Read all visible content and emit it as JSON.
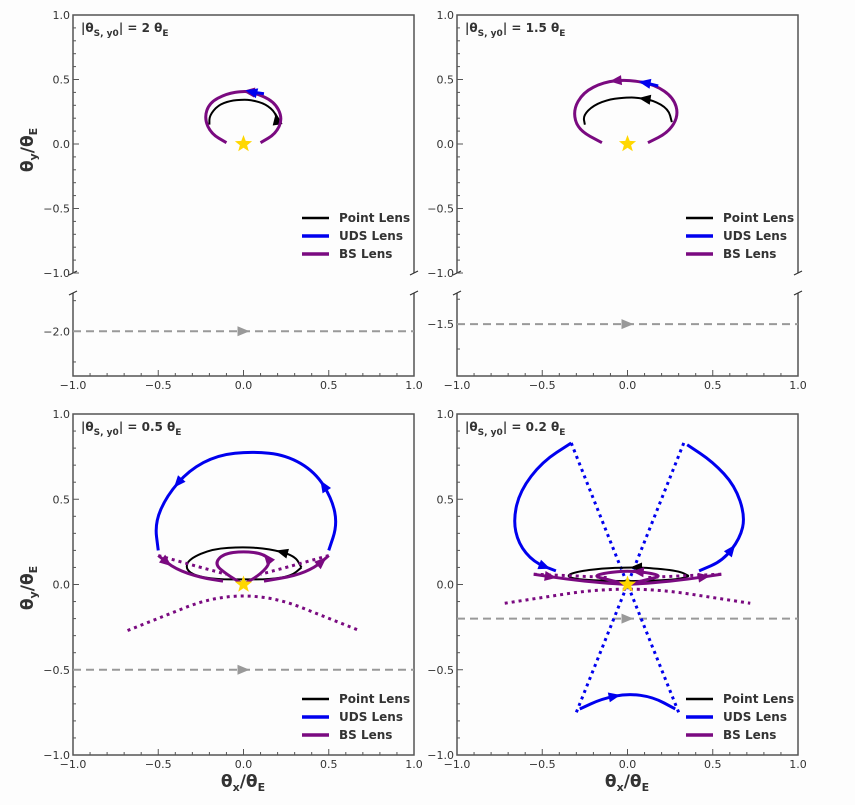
{
  "figure": {
    "xlabel_main": "θ",
    "xlabel_sub": "x",
    "xlabel_den": "/θ",
    "xlabel_den_sub": "E",
    "ylabel_main": "θ",
    "ylabel_sub": "y",
    "ylabel_den": "/θ",
    "ylabel_den_sub": "E"
  },
  "legend": [
    {
      "label": "Point Lens",
      "color": "#000000"
    },
    {
      "label": "UDS Lens",
      "color": "#0000ee"
    },
    {
      "label": "BS Lens",
      "color": "#7a0a80"
    }
  ],
  "colors": {
    "point": "#000000",
    "uds": "#0000ee",
    "bs": "#7a0a80",
    "source": "#999999",
    "star": "#ffd700",
    "axis": "#555555"
  },
  "chart_data": [
    {
      "type": "line",
      "panel": "top-left",
      "annotation": {
        "pre": "|θ",
        "sub": "S, y0",
        "post": "| = 2 θ",
        "post_sub": "E"
      },
      "xlim": [
        -1.0,
        1.0
      ],
      "ylim": [
        -1.0,
        1.0
      ],
      "broken_axis_lower": {
        "ylim": [
          -2.35,
          -1.7
        ],
        "ticks": [
          -2.0
        ],
        "tick_labels": [
          "−2.0"
        ]
      },
      "xticks": [
        -1.0,
        -0.5,
        0.0,
        0.5,
        1.0
      ],
      "xtick_labels": [
        "−1.0",
        "−0.5",
        "0.0",
        "0.5",
        "1.0"
      ],
      "yticks": [
        -1.0,
        -0.5,
        0.0,
        0.5,
        1.0
      ],
      "ytick_labels": [
        "−1.0",
        "−0.5",
        "0.0",
        "0.5",
        "1.0"
      ],
      "legend_position": "lower-right",
      "source_track_y": -2.0,
      "series": [
        {
          "name": "Point Lens",
          "style": "solid",
          "points": [
            [
              0.2,
              0.15
            ],
            [
              0.19,
              0.24
            ],
            [
              0.13,
              0.31
            ],
            [
              0.05,
              0.34
            ],
            [
              0.0,
              0.345
            ],
            [
              -0.08,
              0.335
            ],
            [
              -0.15,
              0.3
            ],
            [
              -0.2,
              0.22
            ],
            [
              -0.2,
              0.15
            ]
          ],
          "arrows": [
            0.1
          ]
        },
        {
          "name": "BS Lens",
          "style": "solid",
          "points": [
            [
              0.1,
              0.01
            ],
            [
              0.19,
              0.08
            ],
            [
              0.23,
              0.2
            ],
            [
              0.18,
              0.33
            ],
            [
              0.06,
              0.4
            ],
            [
              0.0,
              0.41
            ],
            [
              -0.1,
              0.39
            ],
            [
              -0.2,
              0.32
            ],
            [
              -0.23,
              0.2
            ],
            [
              -0.19,
              0.08
            ],
            [
              -0.1,
              0.01
            ]
          ],
          "arrows": [
            0.4
          ]
        },
        {
          "name": "UDS Lens",
          "style": "solid",
          "points": [
            [
              0.12,
              0.39
            ],
            [
              0.06,
              0.4
            ],
            [
              0.03,
              0.41
            ]
          ],
          "arrows": [
            0.5
          ]
        }
      ],
      "source_star": [
        0.0,
        0.0
      ]
    },
    {
      "type": "line",
      "panel": "top-right",
      "annotation": {
        "pre": "|θ",
        "sub": "S, y0",
        "post": "| = 1.5 θ",
        "post_sub": "E"
      },
      "xlim": [
        -1.0,
        1.0
      ],
      "ylim": [
        -1.0,
        1.0
      ],
      "broken_axis_lower": {
        "ylim": [
          -1.75,
          -1.35
        ],
        "ticks": [
          -1.5
        ],
        "tick_labels": [
          "−1.5"
        ]
      },
      "xticks": [
        -1.0,
        -0.5,
        0.0,
        0.5,
        1.0
      ],
      "xtick_labels": [
        "−1.0",
        "−0.5",
        "0.0",
        "0.5",
        "1.0"
      ],
      "yticks": [
        -1.0,
        -0.5,
        0.0,
        0.5,
        1.0
      ],
      "ytick_labels": [
        "−1.0",
        "−0.5",
        "0.0",
        "0.5",
        "1.0"
      ],
      "legend_position": "lower-right",
      "source_track_y": -1.5,
      "series": [
        {
          "name": "Point Lens",
          "style": "solid",
          "points": [
            [
              0.26,
              0.17
            ],
            [
              0.24,
              0.27
            ],
            [
              0.15,
              0.34
            ],
            [
              0.05,
              0.36
            ],
            [
              0.0,
              0.36
            ],
            [
              -0.1,
              0.35
            ],
            [
              -0.2,
              0.3
            ],
            [
              -0.26,
              0.22
            ],
            [
              -0.25,
              0.15
            ]
          ],
          "arrows": [
            0.3
          ]
        },
        {
          "name": "BS Lens",
          "style": "solid",
          "points": [
            [
              0.12,
              0.01
            ],
            [
              0.24,
              0.09
            ],
            [
              0.3,
              0.22
            ],
            [
              0.27,
              0.36
            ],
            [
              0.16,
              0.46
            ],
            [
              0.0,
              0.5
            ],
            [
              -0.14,
              0.48
            ],
            [
              -0.26,
              0.4
            ],
            [
              -0.32,
              0.26
            ],
            [
              -0.29,
              0.11
            ],
            [
              -0.15,
              0.01
            ]
          ],
          "arrows": [
            0.5
          ]
        },
        {
          "name": "UDS Lens",
          "style": "solid",
          "points": [
            [
              0.18,
              0.45
            ],
            [
              0.12,
              0.47
            ],
            [
              0.08,
              0.48
            ]
          ],
          "arrows": [
            0.5
          ]
        }
      ],
      "source_star": [
        0.0,
        0.0
      ]
    },
    {
      "type": "line",
      "panel": "bottom-left",
      "annotation": {
        "pre": "|θ",
        "sub": "S, y0",
        "post": "| = 0.5 θ",
        "post_sub": "E"
      },
      "xlim": [
        -1.0,
        1.0
      ],
      "ylim": [
        -1.0,
        1.0
      ],
      "xticks": [
        -1.0,
        -0.5,
        0.0,
        0.5,
        1.0
      ],
      "xtick_labels": [
        "−1.0",
        "−0.5",
        "0.0",
        "0.5",
        "1.0"
      ],
      "yticks": [
        -1.0,
        -0.5,
        0.0,
        0.5,
        1.0
      ],
      "ytick_labels": [
        "−1.0",
        "−0.5",
        "0.0",
        "0.5",
        "1.0"
      ],
      "legend_position": "lower-right",
      "source_track_y": -0.5,
      "series": [
        {
          "name": "UDS Lens",
          "style": "solid",
          "points": [
            [
              0.5,
              0.2
            ],
            [
              0.55,
              0.35
            ],
            [
              0.52,
              0.5
            ],
            [
              0.42,
              0.66
            ],
            [
              0.25,
              0.76
            ],
            [
              0.05,
              0.78
            ],
            [
              -0.15,
              0.76
            ],
            [
              -0.32,
              0.67
            ],
            [
              -0.45,
              0.52
            ],
            [
              -0.52,
              0.36
            ],
            [
              -0.5,
              0.2
            ]
          ],
          "arrows": [
            0.25,
            0.7
          ]
        },
        {
          "name": "Point Lens",
          "style": "solid",
          "points": [
            [
              0.34,
              0.1
            ],
            [
              0.3,
              0.17
            ],
            [
              0.15,
              0.21
            ],
            [
              0.0,
              0.22
            ],
            [
              -0.18,
              0.21
            ],
            [
              -0.32,
              0.15
            ],
            [
              -0.34,
              0.09
            ],
            [
              -0.28,
              0.05
            ],
            [
              -0.15,
              0.03
            ],
            [
              0.0,
              0.03
            ],
            [
              0.15,
              0.03
            ],
            [
              0.28,
              0.05
            ],
            [
              0.34,
              0.1
            ]
          ],
          "arrows": [
            0.15
          ]
        },
        {
          "name": "BS Lens",
          "style": "solid",
          "points": [
            [
              0.0,
              0.0
            ],
            [
              0.1,
              0.06
            ],
            [
              0.16,
              0.13
            ],
            [
              0.12,
              0.18
            ],
            [
              0.0,
              0.195
            ],
            [
              -0.12,
              0.18
            ],
            [
              -0.17,
              0.12
            ],
            [
              -0.1,
              0.06
            ],
            [
              0.0,
              0.0
            ]
          ],
          "arrows": [
            0.35
          ]
        },
        {
          "name": "BS Lens",
          "style": "solid",
          "points": [
            [
              -0.5,
              0.17
            ],
            [
              -0.4,
              0.09
            ],
            [
              -0.25,
              0.04
            ],
            [
              -0.12,
              0.02
            ]
          ],
          "arrows": [
            0.05
          ]
        },
        {
          "name": "BS Lens",
          "style": "solid",
          "points": [
            [
              0.12,
              0.02
            ],
            [
              0.3,
              0.05
            ],
            [
              0.42,
              0.1
            ],
            [
              0.5,
              0.17
            ]
          ],
          "arrows": [
            0.7
          ]
        },
        {
          "name": "BS Lens",
          "style": "dotted",
          "points": [
            [
              -0.5,
              0.17
            ],
            [
              -0.25,
              0.1
            ],
            [
              -0.1,
              0.06
            ]
          ],
          "arrows": []
        },
        {
          "name": "BS Lens",
          "style": "dotted",
          "points": [
            [
              0.5,
              0.17
            ],
            [
              0.25,
              0.1
            ],
            [
              0.1,
              0.06
            ]
          ],
          "arrows": []
        },
        {
          "name": "BS Lens",
          "style": "dotted",
          "points": [
            [
              -0.68,
              -0.27
            ],
            [
              0.0,
              0.0
            ],
            [
              0.68,
              -0.27
            ]
          ],
          "arrows": []
        }
      ],
      "source_star": [
        0.0,
        0.0
      ]
    },
    {
      "type": "line",
      "panel": "bottom-right",
      "annotation": {
        "pre": "|θ",
        "sub": "S, y0",
        "post": "| = 0.2 θ",
        "post_sub": "E"
      },
      "xlim": [
        -1.0,
        1.0
      ],
      "ylim": [
        -1.0,
        1.0
      ],
      "xticks": [
        -1.0,
        -0.5,
        0.0,
        0.5,
        1.0
      ],
      "xtick_labels": [
        "−1.0",
        "−0.5",
        "0.0",
        "0.5",
        "1.0"
      ],
      "yticks": [
        -1.0,
        -0.5,
        0.0,
        0.5,
        1.0
      ],
      "ytick_labels": [
        "−1.0",
        "−0.5",
        "0.0",
        "0.5",
        "1.0"
      ],
      "legend_position": "lower-right",
      "source_track_y": -0.2,
      "series": [
        {
          "name": "UDS Lens",
          "style": "solid",
          "points": [
            [
              -0.33,
              0.83
            ],
            [
              -0.5,
              0.72
            ],
            [
              -0.63,
              0.55
            ],
            [
              -0.67,
              0.38
            ],
            [
              -0.64,
              0.24
            ],
            [
              -0.55,
              0.13
            ],
            [
              -0.42,
              0.08
            ]
          ],
          "arrows": [
            0.85
          ]
        },
        {
          "name": "UDS Lens",
          "style": "solid",
          "points": [
            [
              0.42,
              0.08
            ],
            [
              0.56,
              0.14
            ],
            [
              0.66,
              0.27
            ],
            [
              0.69,
              0.4
            ],
            [
              0.63,
              0.58
            ],
            [
              0.5,
              0.72
            ],
            [
              0.35,
              0.82
            ]
          ],
          "arrows": [
            0.2
          ]
        },
        {
          "name": "UDS Lens",
          "style": "dotted",
          "points": [
            [
              -0.33,
              0.83
            ],
            [
              0.0,
              0.0
            ],
            [
              0.3,
              -0.75
            ]
          ],
          "arrows": []
        },
        {
          "name": "UDS Lens",
          "style": "dotted",
          "points": [
            [
              0.33,
              0.83
            ],
            [
              0.0,
              0.0
            ],
            [
              -0.3,
              -0.75
            ]
          ],
          "arrows": []
        },
        {
          "name": "UDS Lens",
          "style": "solid",
          "points": [
            [
              -0.28,
              -0.73
            ],
            [
              -0.15,
              -0.67
            ],
            [
              0.0,
              -0.64
            ],
            [
              0.15,
              -0.66
            ],
            [
              0.28,
              -0.73
            ]
          ],
          "arrows": [
            0.35
          ]
        },
        {
          "name": "Point Lens",
          "style": "solid",
          "points": [
            [
              0.36,
              0.05
            ],
            [
              0.3,
              0.08
            ],
            [
              0.1,
              0.1
            ],
            [
              0.0,
              0.1
            ],
            [
              -0.15,
              0.095
            ],
            [
              -0.3,
              0.075
            ],
            [
              -0.36,
              0.05
            ],
            [
              -0.3,
              0.03
            ],
            [
              -0.1,
              0.02
            ],
            [
              0.1,
              0.02
            ],
            [
              0.3,
              0.03
            ],
            [
              0.36,
              0.05
            ]
          ],
          "arrows": [
            0.2
          ]
        },
        {
          "name": "BS Lens",
          "style": "solid",
          "points": [
            [
              0.0,
              0.0
            ],
            [
              0.12,
              0.03
            ],
            [
              0.2,
              0.05
            ],
            [
              0.12,
              0.07
            ],
            [
              0.0,
              0.08
            ],
            [
              -0.12,
              0.07
            ],
            [
              -0.2,
              0.05
            ],
            [
              -0.12,
              0.03
            ],
            [
              0.0,
              0.0
            ]
          ],
          "arrows": [
            0.4
          ]
        },
        {
          "name": "BS Lens",
          "style": "solid",
          "points": [
            [
              -0.55,
              0.06
            ],
            [
              -0.35,
              0.03
            ],
            [
              -0.15,
              0.01
            ],
            [
              0.0,
              0.0
            ]
          ],
          "arrows": [
            0.15
          ]
        },
        {
          "name": "BS Lens",
          "style": "solid",
          "points": [
            [
              0.0,
              0.0
            ],
            [
              0.15,
              0.01
            ],
            [
              0.35,
              0.03
            ],
            [
              0.55,
              0.06
            ]
          ],
          "arrows": [
            0.7
          ]
        },
        {
          "name": "BS Lens",
          "style": "dotted",
          "points": [
            [
              -0.55,
              0.06
            ],
            [
              -0.3,
              0.05
            ],
            [
              -0.1,
              0.04
            ]
          ],
          "arrows": []
        },
        {
          "name": "BS Lens",
          "style": "dotted",
          "points": [
            [
              0.55,
              0.06
            ],
            [
              0.3,
              0.05
            ],
            [
              0.1,
              0.04
            ]
          ],
          "arrows": []
        },
        {
          "name": "BS Lens",
          "style": "dotted",
          "points": [
            [
              -0.72,
              -0.11
            ],
            [
              0.0,
              0.0
            ],
            [
              0.72,
              -0.11
            ]
          ],
          "arrows": []
        }
      ],
      "source_star": [
        0.0,
        0.0
      ]
    }
  ]
}
